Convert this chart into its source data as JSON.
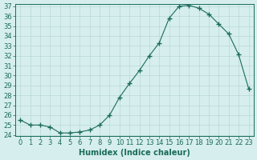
{
  "xlabel": "Humidex (Indice chaleur)",
  "x": [
    0,
    1,
    2,
    3,
    4,
    5,
    6,
    7,
    8,
    9,
    10,
    11,
    12,
    13,
    14,
    15,
    16,
    17,
    18,
    19,
    20,
    21,
    22,
    23
  ],
  "y": [
    25.5,
    25.0,
    25.0,
    24.8,
    24.2,
    24.2,
    24.3,
    24.5,
    25.0,
    26.0,
    27.8,
    29.2,
    30.5,
    32.0,
    33.3,
    35.8,
    37.0,
    37.1,
    36.8,
    36.2,
    35.2,
    34.2,
    32.1,
    28.7
  ],
  "line_color": "#1a6b5a",
  "marker": "+",
  "marker_size": 5,
  "bg_color": "#d6eeee",
  "grid_color": "#b8d8d8",
  "ylim": [
    24,
    37
  ],
  "xlim": [
    -0.5,
    23.5
  ],
  "yticks": [
    24,
    25,
    26,
    27,
    28,
    29,
    30,
    31,
    32,
    33,
    34,
    35,
    36,
    37
  ],
  "xticks": [
    0,
    1,
    2,
    3,
    4,
    5,
    6,
    7,
    8,
    9,
    10,
    11,
    12,
    13,
    14,
    15,
    16,
    17,
    18,
    19,
    20,
    21,
    22,
    23
  ],
  "tick_color": "#1a6b5a",
  "label_fontsize": 6,
  "xlabel_fontsize": 7
}
